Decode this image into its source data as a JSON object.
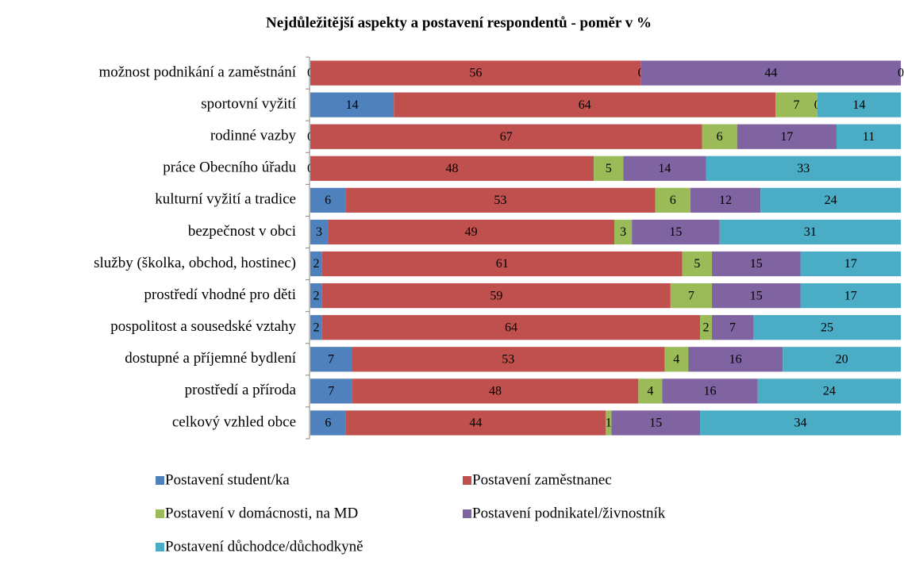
{
  "chart_data": {
    "type": "stacked_bar_100",
    "title": "Nejdůležitější aspekty a postavení respondentů - poměr v %",
    "orientation": "horizontal",
    "categories": [
      "možnost podnikání a zaměstnání",
      "sportovní vyžití",
      "rodinné vazby",
      "práce Obecního úřadu",
      "kulturní vyžití a tradice",
      "bezpečnost v obci",
      "služby (školka, obchod, hostinec)",
      "prostředí vhodné pro děti",
      "pospolitost a sousedské vztahy",
      "dostupné a příjemné bydlení",
      "prostředí a příroda",
      "celkový vzhled obce"
    ],
    "series": [
      {
        "name": "Postavení student/ka",
        "color": "#4f81bd",
        "values": [
          0,
          14,
          0,
          0,
          6,
          3,
          2,
          2,
          2,
          7,
          7,
          6
        ]
      },
      {
        "name": "Postavení zaměstnanec",
        "color": "#c0504d",
        "values": [
          56,
          64,
          67,
          48,
          53,
          49,
          61,
          59,
          64,
          53,
          48,
          44
        ]
      },
      {
        "name": "Postavení v domácnosti, na MD",
        "color": "#9bbb59",
        "values": [
          0,
          7,
          6,
          5,
          6,
          3,
          5,
          7,
          2,
          4,
          4,
          1
        ]
      },
      {
        "name": "Postavení podnikatel/živnostník",
        "color": "#8064a2",
        "values": [
          44,
          0,
          17,
          14,
          12,
          15,
          15,
          15,
          7,
          16,
          16,
          15
        ]
      },
      {
        "name": "Postavení důchodce/důchodkyně",
        "color": "#4bacc6",
        "values": [
          0,
          14,
          11,
          33,
          24,
          31,
          17,
          17,
          25,
          20,
          24,
          34
        ]
      }
    ],
    "legend": "bottom"
  }
}
